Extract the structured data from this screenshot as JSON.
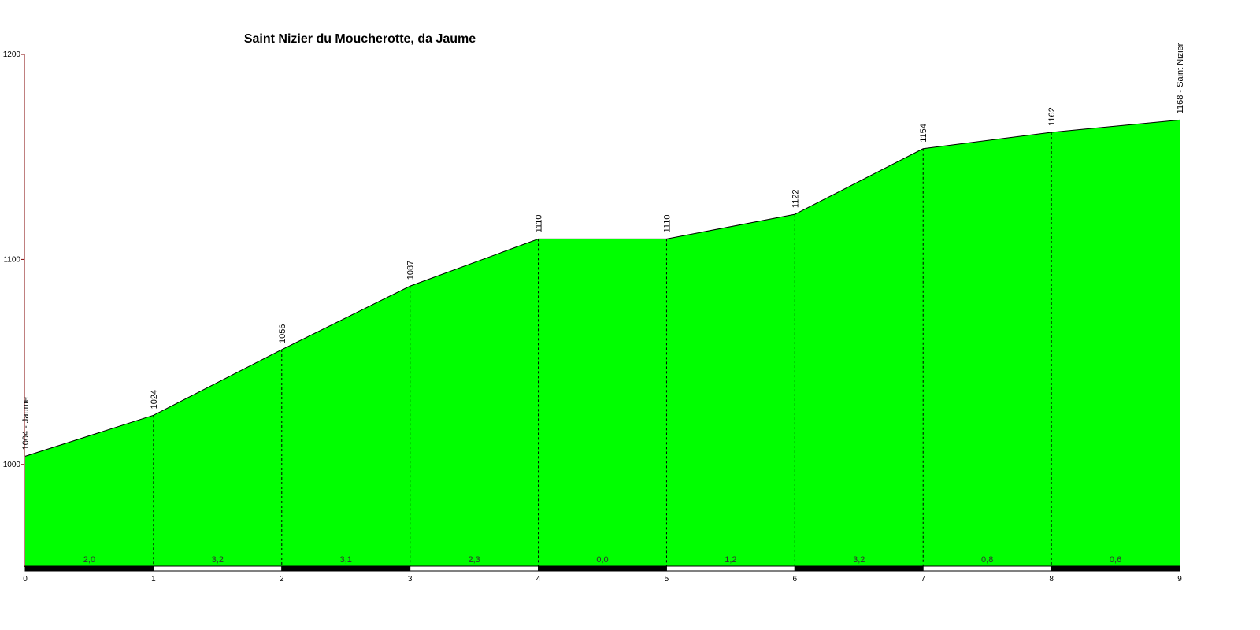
{
  "chart_data": {
    "type": "area",
    "title": "Saint Nizier du Moucherotte, da Jaume",
    "xlabel": "",
    "ylabel": "",
    "xlim": [
      0,
      9
    ],
    "ylim": [
      950,
      1200
    ],
    "y_ticks": [
      1000,
      1100,
      1200
    ],
    "x_ticks": [
      0,
      1,
      2,
      3,
      4,
      5,
      6,
      7,
      8,
      9
    ],
    "x": [
      0,
      1,
      2,
      3,
      4,
      5,
      6,
      7,
      8,
      9
    ],
    "y": [
      1004,
      1024,
      1056,
      1087,
      1110,
      1110,
      1122,
      1154,
      1162,
      1168
    ],
    "point_labels": [
      "1004 - Jaume",
      "1024",
      "1056",
      "1087",
      "1110",
      "1110",
      "1122",
      "1154",
      "1162",
      "1168 - Saint Nizier"
    ],
    "segment_gradients": [
      "2,0",
      "3,2",
      "3,1",
      "2,3",
      "0,0",
      "1,2",
      "3,2",
      "0,8",
      "0,6"
    ],
    "fill_color": "#00ff00",
    "line_color": "#000000",
    "axis_color": "#800000"
  }
}
